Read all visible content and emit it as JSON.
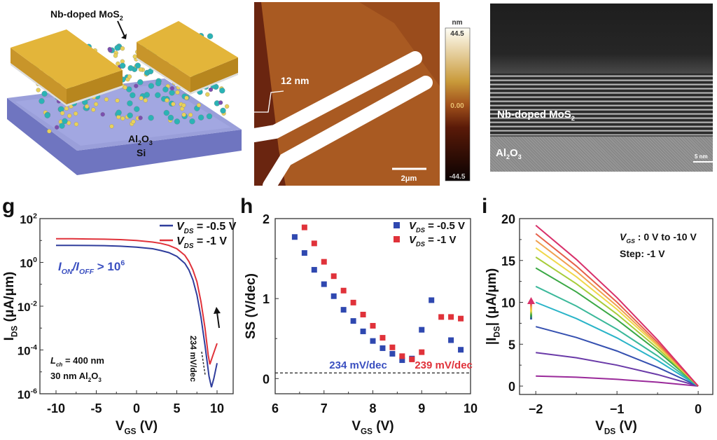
{
  "schematic": {
    "channel_label": {
      "main": "Nb-doped MoS",
      "sub": "2"
    },
    "oxide_label": {
      "a": "Al",
      "s1": "2",
      "b": "O",
      "s2": "3"
    },
    "substrate_label": "Si",
    "colors": {
      "electrode": "#e3b53a",
      "substrate": "#8f95d6",
      "mo_atom": "#2bb3b5",
      "s_atom": "#e8d15a",
      "nb_atom": "#7b4fb0"
    }
  },
  "afm": {
    "step_height_label": "12 nm",
    "scale_bar_label": "2μm",
    "colorbar": {
      "unit": "nm",
      "max": "44.5",
      "mid": "0.00",
      "min": "-44.5"
    }
  },
  "tem": {
    "layer_label": {
      "main": "Nb-doped MoS",
      "sub": "2"
    },
    "oxide_label": {
      "a": "Al",
      "s1": "2",
      "b": "O",
      "s2": "3"
    },
    "scale_bar_label": "5 nm"
  },
  "chart_data": [
    {
      "panel_label": "g",
      "type": "line",
      "yscale": "log",
      "xlim": [
        -12,
        12
      ],
      "ylim": [
        1e-06,
        100
      ],
      "xticks": [
        -10,
        -5,
        0,
        5,
        10
      ],
      "xtick_labels": [
        "-10",
        "-5",
        "0",
        "5",
        "10"
      ],
      "yticks": [
        1e-06,
        0.0001,
        0.01,
        1,
        100
      ],
      "ytick_labels": [
        {
          "base": "10",
          "exp": "-6"
        },
        {
          "base": "10",
          "exp": "-4"
        },
        {
          "base": "10",
          "exp": "-2"
        },
        {
          "base": "10",
          "exp": "0"
        },
        {
          "base": "10",
          "exp": "2"
        }
      ],
      "xlabel": {
        "main": "V",
        "sub": "GS",
        "rest": " (V)"
      },
      "ylabel": {
        "main": "I",
        "sub": "DS",
        "rest": " (μA/μm)"
      },
      "legend_position": "top-right",
      "series": [
        {
          "name": {
            "main": "V",
            "sub": "DS",
            "rest": " = -0.5 V"
          },
          "color": "#2f3d9c",
          "x": [
            -10,
            -8,
            -6,
            -4,
            -2,
            0,
            2,
            3,
            4,
            5,
            6,
            6.5,
            7,
            7.5,
            8,
            8.5,
            9,
            9.3,
            9.6,
            10
          ],
          "y": [
            6.0,
            6.0,
            5.9,
            5.8,
            5.5,
            5.0,
            4.2,
            3.5,
            2.8,
            1.9,
            0.9,
            0.45,
            0.16,
            0.032,
            0.0032,
            0.00016,
            6.3e-06,
            2e-06,
            5e-06,
            2.5e-05
          ]
        },
        {
          "name": {
            "main": "V",
            "sub": "DS",
            "rest": " = -1 V"
          },
          "color": "#e0323a",
          "x": [
            -10,
            -8,
            -6,
            -4,
            -2,
            0,
            2,
            3,
            4,
            5,
            6,
            6.5,
            7,
            7.5,
            8,
            8.5,
            8.9,
            9.1,
            9.5,
            10
          ],
          "y": [
            12,
            12,
            11.7,
            11.5,
            11,
            10,
            8.5,
            7.4,
            6,
            4.2,
            2.1,
            1.1,
            0.45,
            0.13,
            0.016,
            0.001,
            6e-05,
            2.2e-05,
            6e-05,
            0.0002
          ]
        }
      ],
      "annotations": {
        "ratio": {
          "a": "I",
          "a_sub": "ON",
          "mid": "/",
          "b": "I",
          "b_sub": "OFF",
          "rest": " > 10",
          "exp": "6",
          "color": "#3a4fc0"
        },
        "channel_length": {
          "main": "L",
          "sub": "ch",
          "rest": " = 400 nm"
        },
        "oxide": {
          "main": "30 nm Al",
          "s1": "2",
          "b": "O",
          "s2": "3"
        },
        "subthreshold_swing": "234 mV/dec"
      }
    },
    {
      "panel_label": "h",
      "type": "scatter",
      "xlim": [
        6,
        10
      ],
      "ylim": [
        -0.19,
        2
      ],
      "xticks": [
        6,
        7,
        8,
        9,
        10
      ],
      "xtick_labels": [
        "6",
        "7",
        "8",
        "9",
        "10"
      ],
      "yticks": [
        0,
        1,
        2
      ],
      "ytick_labels": [
        "0",
        "1",
        "2"
      ],
      "xlabel": {
        "main": "V",
        "sub": "GS",
        "rest": " (V)"
      },
      "ylabel": "SS (V/dec)",
      "legend_position": "top-right",
      "reference_line_y": 0.07,
      "series": [
        {
          "name": {
            "main": "V",
            "sub": "DS",
            "rest": " = -0.5 V"
          },
          "color": "#2f48b0",
          "x": [
            6.4,
            6.6,
            6.8,
            7.0,
            7.2,
            7.4,
            7.6,
            7.8,
            8.0,
            8.2,
            8.4,
            8.6,
            8.8,
            9.0,
            9.2,
            9.6,
            9.8
          ],
          "y": [
            1.77,
            1.57,
            1.36,
            1.18,
            1.03,
            0.86,
            0.72,
            0.59,
            0.47,
            0.38,
            0.31,
            0.23,
            0.25,
            0.61,
            0.98,
            0.48,
            0.36
          ]
        },
        {
          "name": {
            "main": "V",
            "sub": "DS",
            "rest": " = -1 V"
          },
          "color": "#e0323a",
          "x": [
            6.6,
            6.8,
            7.0,
            7.2,
            7.4,
            7.6,
            7.8,
            8.0,
            8.2,
            8.4,
            8.6,
            8.8,
            9.0,
            9.4,
            9.6,
            9.8
          ],
          "y": [
            1.89,
            1.69,
            1.46,
            1.28,
            1.1,
            0.95,
            0.8,
            0.66,
            0.51,
            0.39,
            0.28,
            0.24,
            0.33,
            0.77,
            0.77,
            0.75
          ]
        }
      ],
      "annotations": [
        {
          "text": "234 mV/dec",
          "x": 7.7,
          "y": 0.1,
          "color": "#3a4fc0"
        },
        {
          "text": "239 mV/dec",
          "x": 9.45,
          "y": 0.1,
          "color": "#e0323a"
        }
      ]
    },
    {
      "panel_label": "i",
      "type": "line",
      "xlim": [
        -2.2,
        0.18
      ],
      "ylim": [
        -1,
        20
      ],
      "xticks": [
        -2,
        -1,
        0
      ],
      "xtick_labels": [
        "−2",
        "−1",
        "0"
      ],
      "yticks": [
        0,
        5,
        10,
        15,
        20
      ],
      "ytick_labels": [
        "0",
        "5",
        "10",
        "15",
        "20"
      ],
      "xlabel": {
        "main": "V",
        "sub": "DS",
        "rest": " (V)"
      },
      "ylabel": {
        "main": "|I",
        "sub": "DS",
        "rest": "| (μA/μm)"
      },
      "x": [
        -2,
        -1.5,
        -1,
        -0.5,
        0
      ],
      "series": [
        {
          "color": "#9a2a9a",
          "y": [
            1.2,
            1.06,
            0.81,
            0.46,
            0
          ]
        },
        {
          "color": "#6a3aa8",
          "y": [
            4.0,
            3.38,
            2.5,
            1.38,
            0
          ]
        },
        {
          "color": "#3550b0",
          "y": [
            7.1,
            5.8,
            4.19,
            2.25,
            0
          ]
        },
        {
          "color": "#2ab4c8",
          "y": [
            10.0,
            8.06,
            5.75,
            3.06,
            0
          ]
        },
        {
          "color": "#3bb89a",
          "y": [
            11.9,
            9.55,
            6.78,
            3.6,
            0
          ]
        },
        {
          "color": "#3aa845",
          "y": [
            14.1,
            11.24,
            7.93,
            4.19,
            0
          ]
        },
        {
          "color": "#a8cc3a",
          "y": [
            15.4,
            12.21,
            8.59,
            4.51,
            0
          ]
        },
        {
          "color": "#f0d84a",
          "y": [
            16.5,
            13.05,
            9.16,
            4.8,
            0
          ]
        },
        {
          "color": "#f0a050",
          "y": [
            17.4,
            13.7,
            9.57,
            5.0,
            0
          ]
        },
        {
          "color": "#e6604a",
          "y": [
            18.2,
            14.33,
            10.01,
            5.23,
            0
          ]
        },
        {
          "color": "#d8306a",
          "y": [
            19.2,
            15.12,
            10.56,
            5.52,
            0
          ]
        }
      ],
      "annotations": {
        "gate_sweep": {
          "main": "V",
          "sub": "GS",
          "rest": " : 0 V to -10 V"
        },
        "step": "Step: -1 V"
      }
    }
  ]
}
